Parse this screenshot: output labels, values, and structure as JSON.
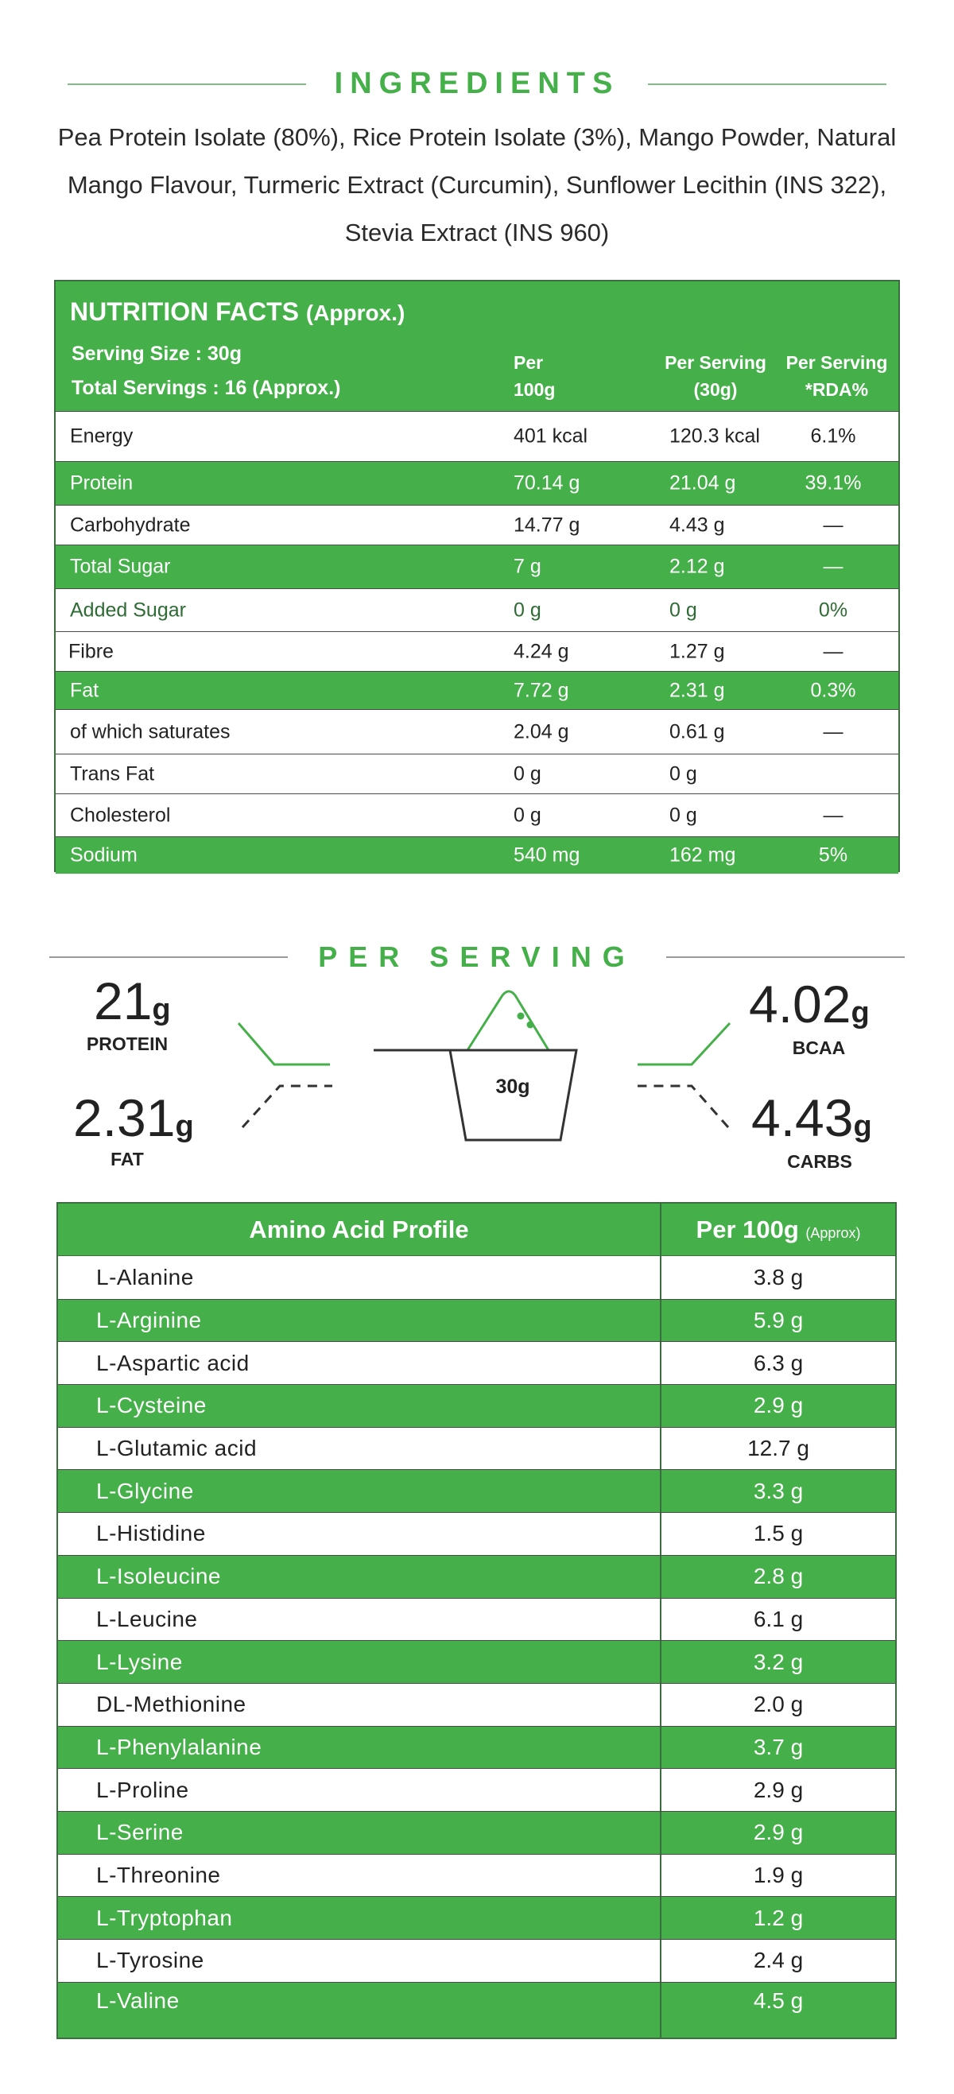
{
  "ingredients": {
    "title": "INGREDIENTS",
    "text": "Pea Protein Isolate (80%), Rice Protein Isolate (3%), Mango Powder, Natural Mango Flavour, Turmeric Extract (Curcumin), Sunflower Lecithin (INS 322), Stevia Extract (INS 960)"
  },
  "nutrition": {
    "title": "NUTRITION FACTS",
    "title_suffix": "(Approx.)",
    "serving_size": "Serving Size : 30g",
    "total_servings": "Total Servings : 16 (Approx.)",
    "col_per100_line1": "Per",
    "col_per100_line2": "100g",
    "col_serving_line1": "Per Serving",
    "col_serving_line2": "(30g)",
    "col_rda_line1": "Per Serving",
    "col_rda_line2": "*RDA%",
    "rows": [
      {
        "name": "Energy",
        "per100": "401 kcal",
        "serving": "120.3 kcal",
        "rda": "6.1%"
      },
      {
        "name": "Protein",
        "per100": "70.14 g",
        "serving": "21.04 g",
        "rda": "39.1%"
      },
      {
        "name": "Carbohydrate",
        "per100": "14.77 g",
        "serving": "4.43 g",
        "rda": "—"
      },
      {
        "name": "Total Sugar",
        "per100": "7 g",
        "serving": "2.12 g",
        "rda": "—"
      },
      {
        "name": "Added Sugar",
        "per100": "0 g",
        "serving": "0 g",
        "rda": "0%"
      },
      {
        "name": "Fibre",
        "per100": "4.24 g",
        "serving": "1.27 g",
        "rda": "—"
      },
      {
        "name": "Fat",
        "per100": "7.72 g",
        "serving": "2.31 g",
        "rda": "0.3%"
      },
      {
        "name": "of which saturates",
        "per100": "2.04 g",
        "serving": "0.61 g",
        "rda": "—"
      },
      {
        "name": "Trans Fat",
        "per100": "0 g",
        "serving": "0 g",
        "rda": ""
      },
      {
        "name": "Cholesterol",
        "per100": "0 g",
        "serving": "0 g",
        "rda": "—"
      },
      {
        "name": "Sodium",
        "per100": "540 mg",
        "serving": "162 mg",
        "rda": "5%"
      }
    ]
  },
  "per_serving": {
    "title": "PER SERVING",
    "protein_value": "21",
    "protein_unit": "g",
    "protein_label": "PROTEIN",
    "fat_value": "2.31",
    "fat_unit": "g",
    "fat_label": "FAT",
    "bcaa_value": "4.02",
    "bcaa_unit": "g",
    "bcaa_label": "BCAA",
    "carbs_value": "4.43",
    "carbs_unit": "g",
    "carbs_label": "CARBS",
    "scoop_label": "30g"
  },
  "amino": {
    "header_name": "Amino Acid Profile",
    "header_value": "Per 100g",
    "header_value_note": "(Approx)",
    "rows": [
      {
        "name": "L-Alanine",
        "value": "3.8 g"
      },
      {
        "name": "L-Arginine",
        "value": "5.9 g"
      },
      {
        "name": "L-Aspartic acid",
        "value": "6.3 g"
      },
      {
        "name": "L-Cysteine",
        "value": "2.9 g"
      },
      {
        "name": "L-Glutamic acid",
        "value": "12.7 g"
      },
      {
        "name": "L-Glycine",
        "value": "3.3 g"
      },
      {
        "name": "L-Histidine",
        "value": "1.5 g"
      },
      {
        "name": "L-Isoleucine",
        "value": "2.8 g"
      },
      {
        "name": "L-Leucine",
        "value": "6.1 g"
      },
      {
        "name": "L-Lysine",
        "value": "3.2 g"
      },
      {
        "name": "DL-Methionine",
        "value": "2.0 g"
      },
      {
        "name": "L-Phenylalanine",
        "value": "3.7 g"
      },
      {
        "name": "L-Proline",
        "value": "2.9 g"
      },
      {
        "name": "L-Serine",
        "value": "2.9 g"
      },
      {
        "name": "L-Threonine",
        "value": "1.9 g"
      },
      {
        "name": "L-Tryptophan",
        "value": "1.2 g"
      },
      {
        "name": "L-Tyrosine",
        "value": "2.4 g"
      },
      {
        "name": "L-Valine",
        "value": "4.5 g"
      }
    ]
  }
}
